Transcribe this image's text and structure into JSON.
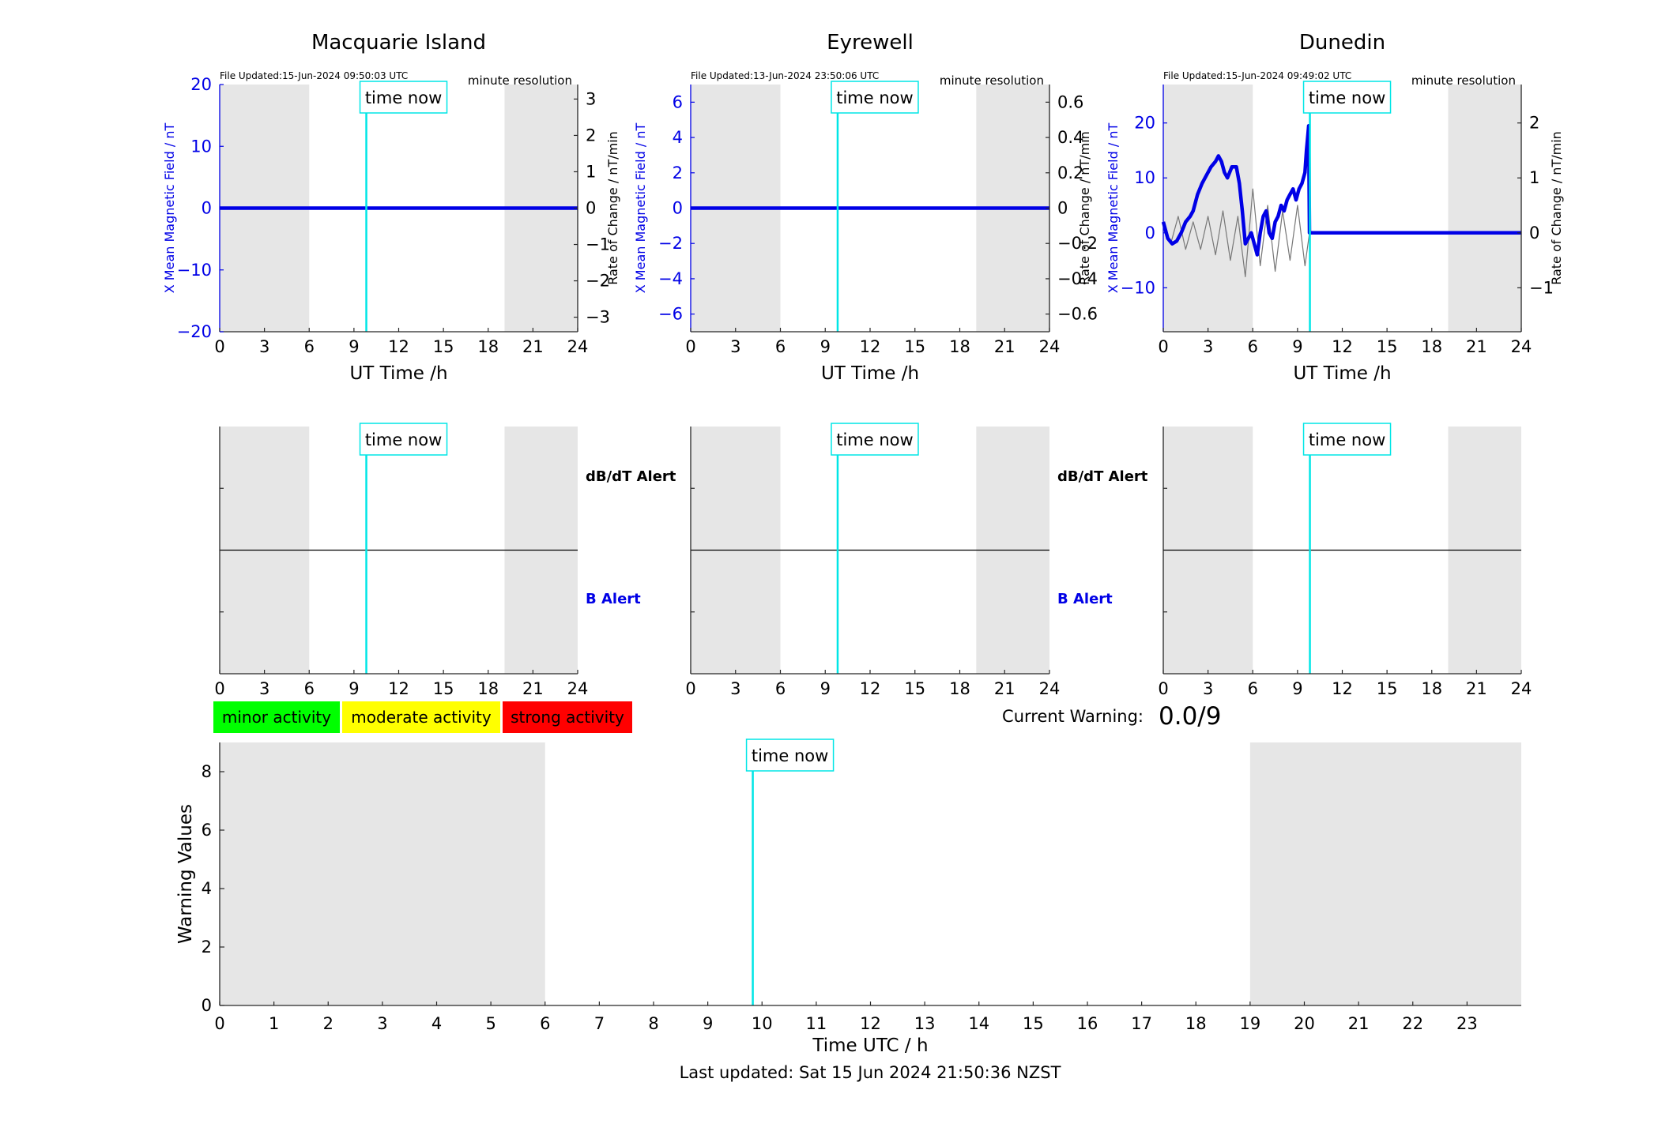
{
  "chart_data": [
    {
      "type": "line",
      "title": "Macquarie Island",
      "file_updated": "File Updated:15-Jun-2024 09:50:03 UTC",
      "resolution": "minute resolution",
      "xlabel": "UT Time /h",
      "ylabel_left": "X Mean Magnetic Field / nT",
      "ylabel_right": "Rate of Change / nT/min",
      "xlim": [
        0,
        24
      ],
      "xticks": [
        0,
        3,
        6,
        9,
        12,
        15,
        18,
        21,
        24
      ],
      "ylim_left": [
        -20,
        20
      ],
      "yticks_left": [
        -20,
        -10,
        0,
        10,
        20
      ],
      "ylim_right": [
        -3.4,
        3.4
      ],
      "yticks_right": [
        -3,
        -2,
        -1,
        0,
        1,
        2,
        3
      ],
      "night_shading": [
        [
          0,
          6
        ],
        [
          19.1,
          24
        ]
      ],
      "time_now": 9.83,
      "time_now_label": "time now",
      "series": [
        {
          "style": "mean-field",
          "x": [
            0,
            24
          ],
          "y": [
            0,
            0
          ]
        },
        {
          "style": "rate",
          "x": [
            0,
            24
          ],
          "y": [
            0,
            0
          ]
        }
      ]
    },
    {
      "type": "line",
      "title": "Eyrewell",
      "file_updated": "File Updated:13-Jun-2024 23:50:06 UTC",
      "resolution": "minute resolution",
      "xlabel": "UT Time /h",
      "ylabel_left": "X Mean Magnetic Field / nT",
      "ylabel_right": "Rate of Change / nT/min",
      "xlim": [
        0,
        24
      ],
      "xticks": [
        0,
        3,
        6,
        9,
        12,
        15,
        18,
        21,
        24
      ],
      "ylim_left": [
        -7,
        7
      ],
      "yticks_left": [
        -6,
        -4,
        -2,
        0,
        2,
        4,
        6
      ],
      "ylim_right": [
        -0.7,
        0.7
      ],
      "yticks_right": [
        -0.6,
        -0.4,
        -0.2,
        0,
        0.2,
        0.4,
        0.6
      ],
      "night_shading": [
        [
          0,
          6
        ],
        [
          19.1,
          24
        ]
      ],
      "time_now": 9.83,
      "time_now_label": "time now",
      "series": [
        {
          "style": "mean-field",
          "x": [
            0,
            24
          ],
          "y": [
            0,
            0
          ]
        },
        {
          "style": "rate",
          "x": [
            0,
            24
          ],
          "y": [
            0,
            0
          ]
        }
      ]
    },
    {
      "type": "line",
      "title": "Dunedin",
      "file_updated": "File Updated:15-Jun-2024 09:49:02 UTC",
      "resolution": "minute resolution",
      "xlabel": "UT Time /h",
      "ylabel_left": "X Mean Magnetic Field / nT",
      "ylabel_right": "Rate of Change / nT/min",
      "xlim": [
        0,
        24
      ],
      "xticks": [
        0,
        3,
        6,
        9,
        12,
        15,
        18,
        21,
        24
      ],
      "ylim_left": [
        -18,
        27
      ],
      "yticks_left": [
        -10,
        0,
        10,
        20
      ],
      "ylim_right": [
        -1.8,
        2.7
      ],
      "yticks_right": [
        -1,
        0,
        1,
        2
      ],
      "night_shading": [
        [
          0,
          6
        ],
        [
          19.1,
          24
        ]
      ],
      "time_now": 9.83,
      "time_now_label": "time now",
      "series": [
        {
          "style": "mean-field",
          "x": [
            0,
            0.3,
            0.6,
            0.9,
            1.2,
            1.5,
            1.8,
            2.0,
            2.3,
            2.6,
            2.9,
            3.2,
            3.5,
            3.7,
            3.9,
            4.1,
            4.3,
            4.6,
            4.9,
            5.1,
            5.3,
            5.5,
            5.7,
            5.9,
            6.1,
            6.3,
            6.5,
            6.7,
            6.9,
            7.1,
            7.3,
            7.5,
            7.7,
            7.9,
            8.1,
            8.3,
            8.5,
            8.7,
            8.9,
            9.1,
            9.3,
            9.5,
            9.6,
            9.7,
            9.75,
            9.8,
            24
          ],
          "y": [
            2,
            -1,
            -2,
            -1.5,
            0,
            2,
            3,
            4,
            7,
            9,
            10.5,
            12,
            13,
            14,
            13,
            11,
            10,
            12,
            12,
            9,
            4,
            -2,
            -1,
            0,
            -2,
            -4,
            0,
            3,
            4,
            0,
            -1,
            2,
            3,
            5,
            4,
            6,
            7,
            8,
            6,
            8,
            9,
            11,
            15,
            18,
            19.5,
            0,
            0
          ]
        },
        {
          "style": "rate",
          "x": [
            0,
            0.5,
            1,
            1.5,
            2,
            2.5,
            3,
            3.5,
            4,
            4.5,
            5,
            5.5,
            6,
            6.5,
            7,
            7.5,
            8,
            8.5,
            9,
            9.5,
            9.8,
            24
          ],
          "y": [
            0.1,
            -0.2,
            0.3,
            -0.3,
            0.2,
            -0.3,
            0.3,
            -0.4,
            0.4,
            -0.5,
            0.3,
            -0.8,
            0.8,
            -0.6,
            0.5,
            -0.7,
            0.4,
            -0.5,
            0.5,
            -0.6,
            0,
            0
          ]
        }
      ]
    },
    {
      "type": "line",
      "label_dbdt": "dB/dT Alert",
      "label_b": "B Alert",
      "xlim": [
        0,
        24
      ],
      "xticks": [
        0,
        3,
        6,
        9,
        12,
        15,
        18,
        21,
        24
      ],
      "night_shading": [
        [
          0,
          6
        ],
        [
          19.1,
          24
        ]
      ],
      "time_now": 9.83,
      "time_now_label": "time now"
    },
    {
      "type": "line",
      "label_dbdt": "dB/dT Alert",
      "label_b": "B Alert",
      "xlim": [
        0,
        24
      ],
      "xticks": [
        0,
        3,
        6,
        9,
        12,
        15,
        18,
        21,
        24
      ],
      "night_shading": [
        [
          0,
          6
        ],
        [
          19.1,
          24
        ]
      ],
      "time_now": 9.83,
      "time_now_label": "time now"
    },
    {
      "type": "line",
      "xlim": [
        0,
        24
      ],
      "xticks": [
        0,
        3,
        6,
        9,
        12,
        15,
        18,
        21,
        24
      ],
      "night_shading": [
        [
          0,
          6
        ],
        [
          19.1,
          24
        ]
      ],
      "time_now": 9.83,
      "time_now_label": "time now"
    },
    {
      "type": "line",
      "xlabel": "Time UTC / h",
      "ylabel": "Warning Values",
      "xlim": [
        0,
        24
      ],
      "xticks": [
        0,
        1,
        2,
        3,
        4,
        5,
        6,
        7,
        8,
        9,
        10,
        11,
        12,
        13,
        14,
        15,
        16,
        17,
        18,
        19,
        20,
        21,
        22,
        23
      ],
      "ylim": [
        0,
        9
      ],
      "yticks": [
        0,
        2,
        4,
        6,
        8
      ],
      "night_shading": [
        [
          0,
          6
        ],
        [
          19,
          24
        ]
      ],
      "time_now": 9.83,
      "time_now_label": "time now",
      "footer": "Last updated: Sat 15 Jun 2024 21:50:36 NZST"
    }
  ],
  "legend": [
    {
      "label": "minor activity",
      "color": "#00ff00"
    },
    {
      "label": "moderate activity",
      "color": "#ffff00"
    },
    {
      "label": "strong activity",
      "color": "#ff0000"
    }
  ],
  "current_warning": {
    "label": "Current Warning:",
    "value": "0.0/9"
  },
  "colors": {
    "mean_field": "#0000e6",
    "rate": "#777777",
    "time_now": "#00e6e6",
    "night": "#e6e6e6"
  }
}
